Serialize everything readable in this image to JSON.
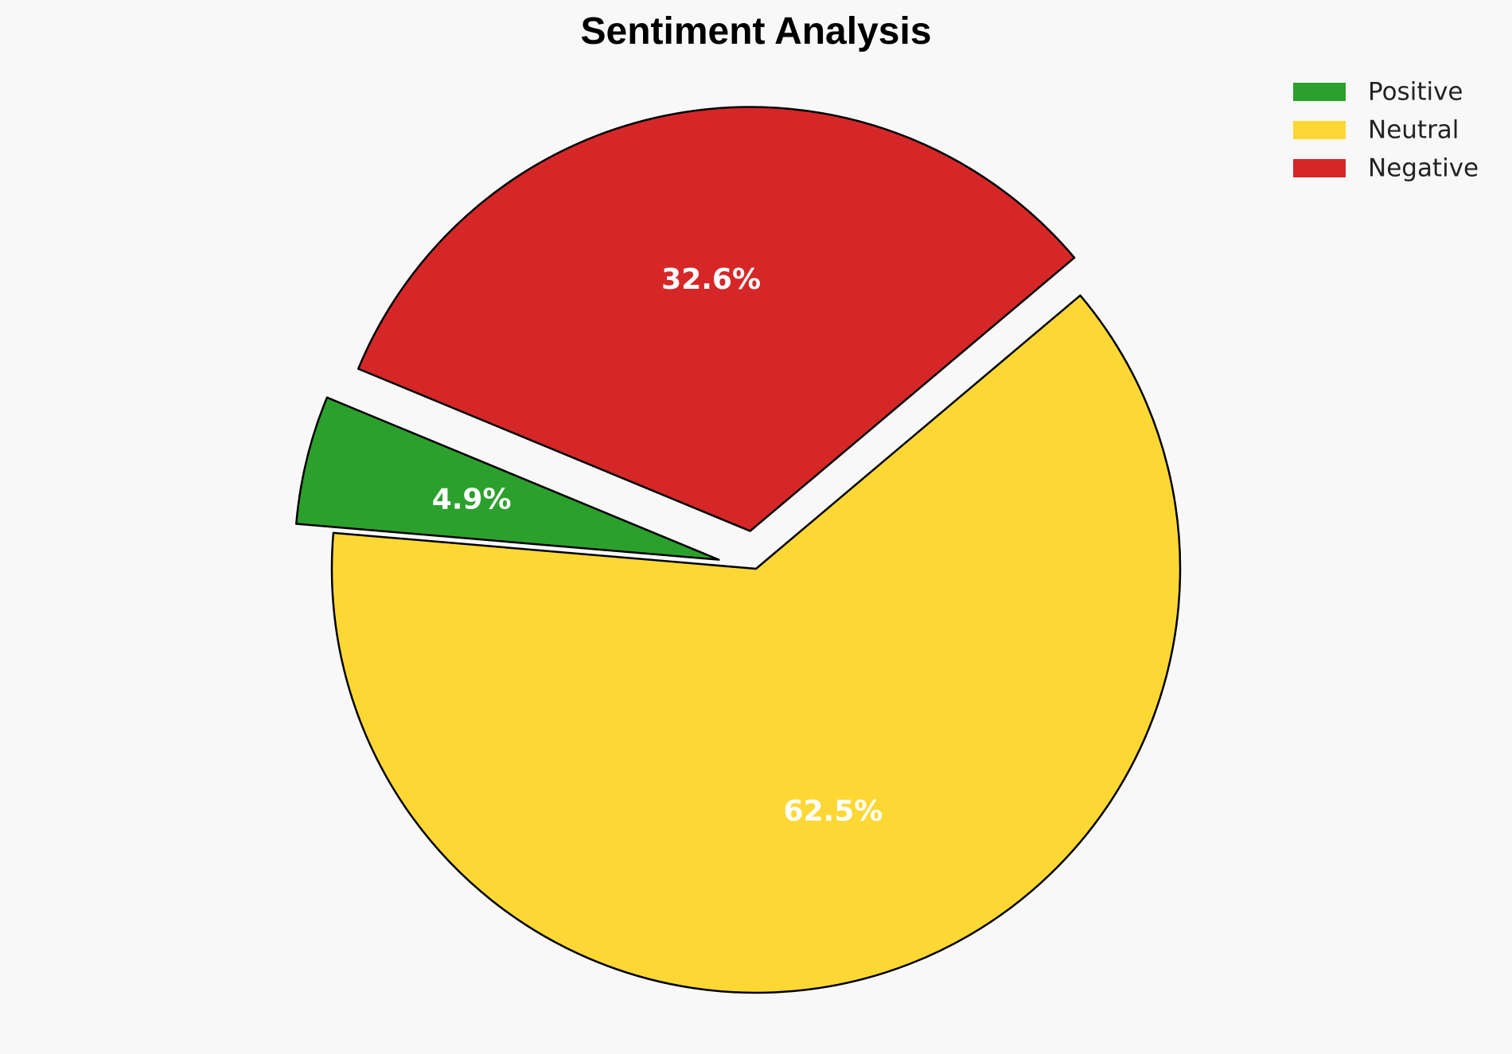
{
  "chart_data": {
    "type": "pie",
    "title": "Sentiment Analysis",
    "slices": [
      {
        "name": "Positive",
        "value": 4.9,
        "label": "4.9%",
        "color": "#2ca02c",
        "exploded": true
      },
      {
        "name": "Neutral",
        "value": 62.5,
        "label": "62.5%",
        "color": "#fdd835",
        "exploded": false
      },
      {
        "name": "Negative",
        "value": 32.6,
        "label": "32.6%",
        "color": "#d62728",
        "exploded": true
      }
    ],
    "start_angle_deg": 157.5,
    "direction": "counterclockwise",
    "legend": {
      "position": "top-right",
      "entries": [
        "Positive",
        "Neutral",
        "Negative"
      ]
    }
  }
}
